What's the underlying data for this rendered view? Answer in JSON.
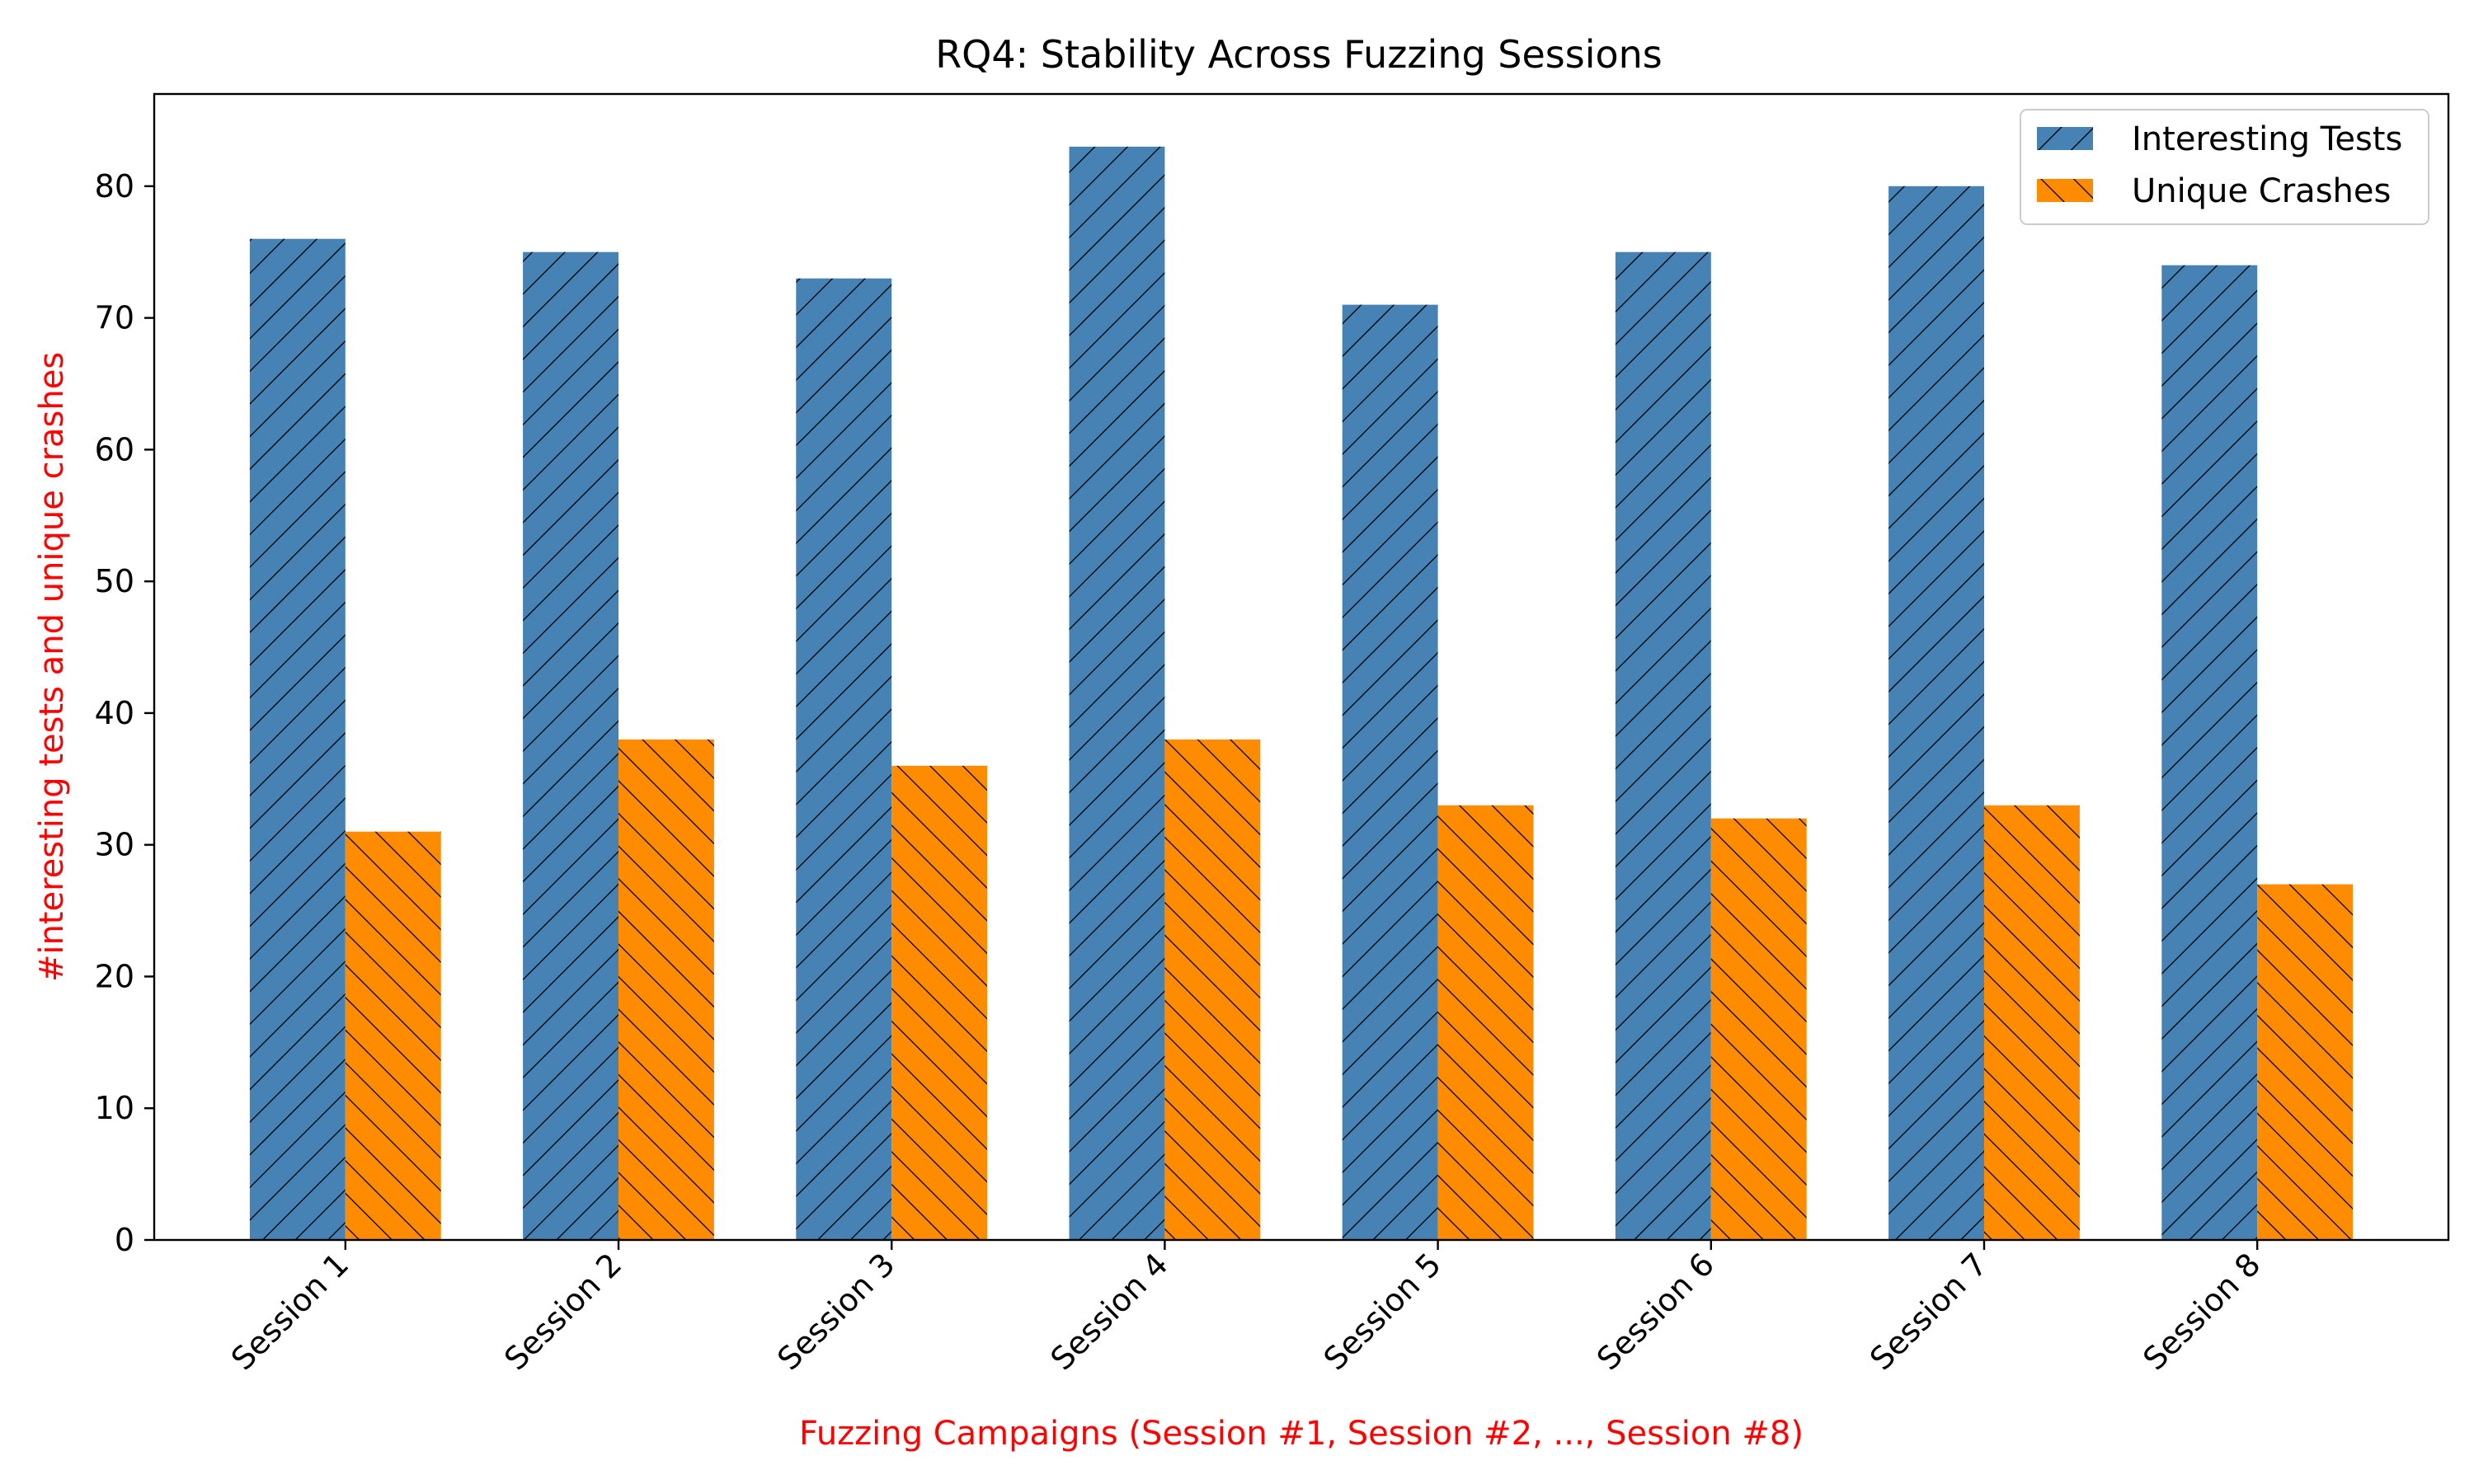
{
  "colors": {
    "series_1": "#4682b4",
    "series_2": "#ff8c00",
    "axis_label": "#ff0000",
    "hatch": "#000000",
    "axes": "#000000",
    "background": "#ffffff"
  },
  "chart_data": {
    "type": "bar",
    "title": "RQ4: Stability Across Fuzzing Sessions",
    "xlabel": "Fuzzing Campaigns (Session #1, Session #2, ..., Session #8)",
    "ylabel": "#interesting tests and unique crashes",
    "categories": [
      "Session 1",
      "Session 2",
      "Session 3",
      "Session 4",
      "Session 5",
      "Session 6",
      "Session 7",
      "Session 8"
    ],
    "series": [
      {
        "name": "Interesting Tests",
        "values": [
          76,
          75,
          73,
          83,
          71,
          75,
          80,
          74
        ],
        "color": "#4682b4",
        "hatch": "forward-diagonal"
      },
      {
        "name": "Unique Crashes",
        "values": [
          31,
          38,
          36,
          38,
          33,
          32,
          33,
          27
        ],
        "color": "#ff8c00",
        "hatch": "back-diagonal"
      }
    ],
    "ylim": [
      0,
      87
    ],
    "yticks": [
      0,
      10,
      20,
      30,
      40,
      50,
      60,
      70,
      80
    ],
    "grid": false,
    "legend_position": "top-right",
    "xtick_rotation": "45 degrees"
  }
}
